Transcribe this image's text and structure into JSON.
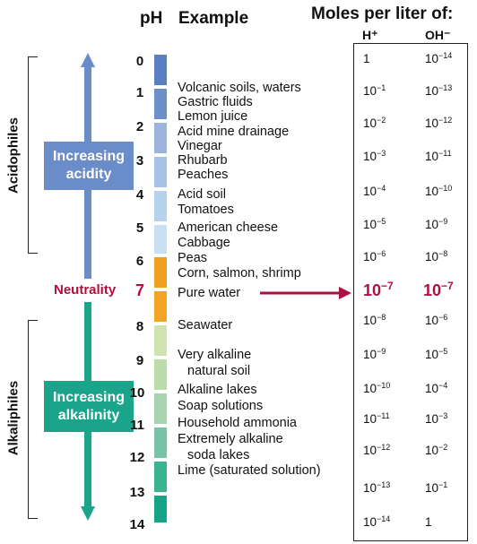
{
  "header": {
    "ph": "pH",
    "example": "Example",
    "moles": "Moles per liter of:",
    "h_col": "H⁺",
    "oh_col": "OH⁻"
  },
  "side_labels": {
    "acidophiles": "Acidophiles",
    "alkaliphiles": "Alkaliphiles",
    "neutrality": "Neutrality"
  },
  "boxes": {
    "acidity": "Increasing\nacidity",
    "alkalinity": "Increasing\nalkalinity"
  },
  "ph_values": [
    "0",
    "1",
    "2",
    "3",
    "4",
    "5",
    "6",
    "7",
    "8",
    "9",
    "10",
    "11",
    "12",
    "13",
    "14"
  ],
  "examples": {
    "l1": "Volcanic soils, waters",
    "l2": "Gastric fluids",
    "l3": "Lemon juice",
    "l4": "Acid mine drainage",
    "l5": "Vinegar",
    "l6": "Rhubarb",
    "l7": "Peaches",
    "l8": "Acid soil",
    "l9": "Tomatoes",
    "l10": "American cheese",
    "l11": "Cabbage",
    "l12": "Peas",
    "l13": "Corn, salmon, shrimp",
    "l14": "Pure water",
    "l15": "Seawater",
    "l16": "Very alkaline",
    "l17": "natural soil",
    "l18": "Alkaline lakes",
    "l19": "Soap solutions",
    "l20": "Household ammonia",
    "l21": "Extremely alkaline",
    "l22": "soda lakes",
    "l23": "Lime (saturated solution)"
  },
  "h_moles": [
    "1",
    "10",
    "10",
    "10",
    "10",
    "10",
    "10",
    "10",
    "10",
    "10",
    "10",
    "10",
    "10",
    "10",
    "10"
  ],
  "h_exp": [
    "",
    "−1",
    "−2",
    "−3",
    "−4",
    "−5",
    "−6",
    "−7",
    "−8",
    "−9",
    "−10",
    "−11",
    "−12",
    "−13",
    "−14"
  ],
  "oh_moles": [
    "10",
    "10",
    "10",
    "10",
    "10",
    "10",
    "10",
    "10",
    "10",
    "10",
    "10",
    "10",
    "10",
    "10",
    "1"
  ],
  "oh_exp": [
    "−14",
    "−13",
    "−12",
    "−11",
    "−10",
    "−9",
    "−8",
    "−7",
    "−6",
    "−5",
    "−4",
    "−3",
    "−2",
    "−1",
    ""
  ],
  "colors": {
    "acid_blue": "#6a8cc8",
    "alkali_green": "#1aa58a",
    "neutral_orange": "#f0a020",
    "neutral_red": "#b01040"
  }
}
